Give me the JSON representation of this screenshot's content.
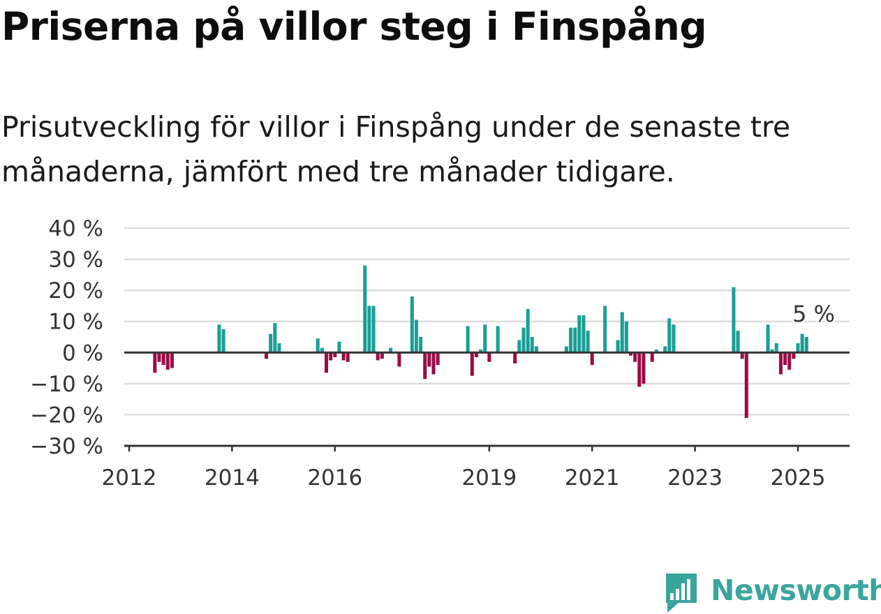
{
  "header": {
    "title": "Priserna på villor steg i Finspång",
    "subtitle": "Prisutveckling för villor i Finspång under de senaste tre månaderna, jämfört med tre månader tidigare."
  },
  "brand": {
    "name": "Newsworthy",
    "icon": "newsworthy-logo-icon",
    "color": "#3aa59c"
  },
  "colors": {
    "positive": "#1a9e96",
    "negative": "#9b0c45",
    "grid": "#dddddd",
    "axis": "#333333"
  },
  "chart_data": {
    "type": "bar",
    "ylim": [
      -30,
      40
    ],
    "y_ticks": [
      40,
      30,
      20,
      10,
      0,
      -10,
      -20,
      -30
    ],
    "y_tick_labels": [
      "40 %",
      "30 %",
      "20 %",
      "10 %",
      "0 %",
      "−10 %",
      "−20 %",
      "−30 %"
    ],
    "x_ticks": [
      "2012",
      "2014",
      "2016",
      "2019",
      "2021",
      "2023",
      "2025"
    ],
    "xlim": [
      "2012-01",
      "2026-02"
    ],
    "grid": true,
    "annotation": "5 %",
    "series": [
      {
        "values": [
          [
            "2012-07",
            -6.5
          ],
          [
            "2012-08",
            -3
          ],
          [
            "2012-09",
            -4
          ],
          [
            "2012-10",
            -5.5
          ],
          [
            "2012-11",
            -5
          ],
          [
            "2013-10",
            9
          ],
          [
            "2013-11",
            7.5
          ],
          [
            "2014-09",
            -2
          ],
          [
            "2014-10",
            6
          ],
          [
            "2014-11",
            9.5
          ],
          [
            "2014-12",
            3
          ],
          [
            "2015-09",
            4.5
          ],
          [
            "2015-10",
            1.5
          ],
          [
            "2015-11",
            -6.5
          ],
          [
            "2015-12",
            -2.5
          ],
          [
            "2016-01",
            -1.5
          ],
          [
            "2016-02",
            3.5
          ],
          [
            "2016-03",
            -2.5
          ],
          [
            "2016-04",
            -3
          ],
          [
            "2016-08",
            28
          ],
          [
            "2016-09",
            15
          ],
          [
            "2016-10",
            15
          ],
          [
            "2016-11",
            -2.5
          ],
          [
            "2016-12",
            -2
          ],
          [
            "2017-02",
            1.5
          ],
          [
            "2017-04",
            -4.5
          ],
          [
            "2017-07",
            18
          ],
          [
            "2017-08",
            10.5
          ],
          [
            "2017-09",
            5
          ],
          [
            "2017-10",
            -8.5
          ],
          [
            "2017-11",
            -4.5
          ],
          [
            "2017-12",
            -7
          ],
          [
            "2018-01",
            -4
          ],
          [
            "2018-08",
            8.5
          ],
          [
            "2018-09",
            -7.5
          ],
          [
            "2018-10",
            -1.5
          ],
          [
            "2018-11",
            1
          ],
          [
            "2018-12",
            9
          ],
          [
            "2019-01",
            -3
          ],
          [
            "2019-03",
            8.5
          ],
          [
            "2019-07",
            -3.5
          ],
          [
            "2019-08",
            4
          ],
          [
            "2019-09",
            8
          ],
          [
            "2019-10",
            14
          ],
          [
            "2019-11",
            5
          ],
          [
            "2019-12",
            2
          ],
          [
            "2020-07",
            2
          ],
          [
            "2020-08",
            8
          ],
          [
            "2020-09",
            8
          ],
          [
            "2020-10",
            12
          ],
          [
            "2020-11",
            12
          ],
          [
            "2020-12",
            7
          ],
          [
            "2021-01",
            -4
          ],
          [
            "2021-04",
            15
          ],
          [
            "2021-07",
            4
          ],
          [
            "2021-08",
            13
          ],
          [
            "2021-09",
            10
          ],
          [
            "2021-10",
            -1
          ],
          [
            "2021-11",
            -3
          ],
          [
            "2021-12",
            -11
          ],
          [
            "2022-01",
            -10
          ],
          [
            "2022-03",
            -3
          ],
          [
            "2022-04",
            1
          ],
          [
            "2022-06",
            2
          ],
          [
            "2022-07",
            11
          ],
          [
            "2022-08",
            9
          ],
          [
            "2023-10",
            21
          ],
          [
            "2023-11",
            7
          ],
          [
            "2023-12",
            -2
          ],
          [
            "2024-01",
            -21
          ],
          [
            "2024-06",
            9
          ],
          [
            "2024-07",
            1
          ],
          [
            "2024-08",
            3
          ],
          [
            "2024-09",
            -7
          ],
          [
            "2024-10",
            -4
          ],
          [
            "2024-11",
            -5.5
          ],
          [
            "2024-12",
            -2
          ],
          [
            "2025-01",
            3
          ],
          [
            "2025-02",
            6
          ],
          [
            "2025-03",
            5
          ]
        ]
      }
    ]
  }
}
